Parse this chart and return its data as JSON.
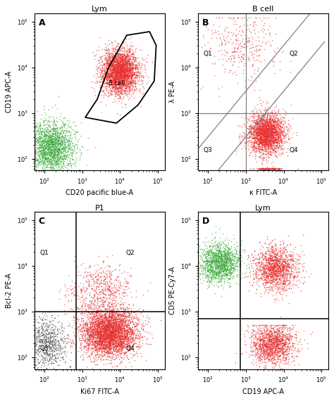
{
  "panels": [
    "A",
    "B",
    "C",
    "D"
  ],
  "titles": [
    "Lym",
    "B cell",
    "P1",
    "Lym"
  ],
  "xlabels": [
    "CD20 pacific blue-A",
    "κ FITC-A",
    "Ki67 FITC-A",
    "CD19 APC-A"
  ],
  "ylabels": [
    "CD19 APC-A",
    "λ PE-A",
    "Bcl-2 PE-A",
    "CD5 PE-Cy7-A"
  ],
  "seed": 42,
  "red_color": "#e83030",
  "green_color": "#3aaa3a",
  "dark_color": "#555555",
  "xylim": [
    55,
    150000
  ]
}
